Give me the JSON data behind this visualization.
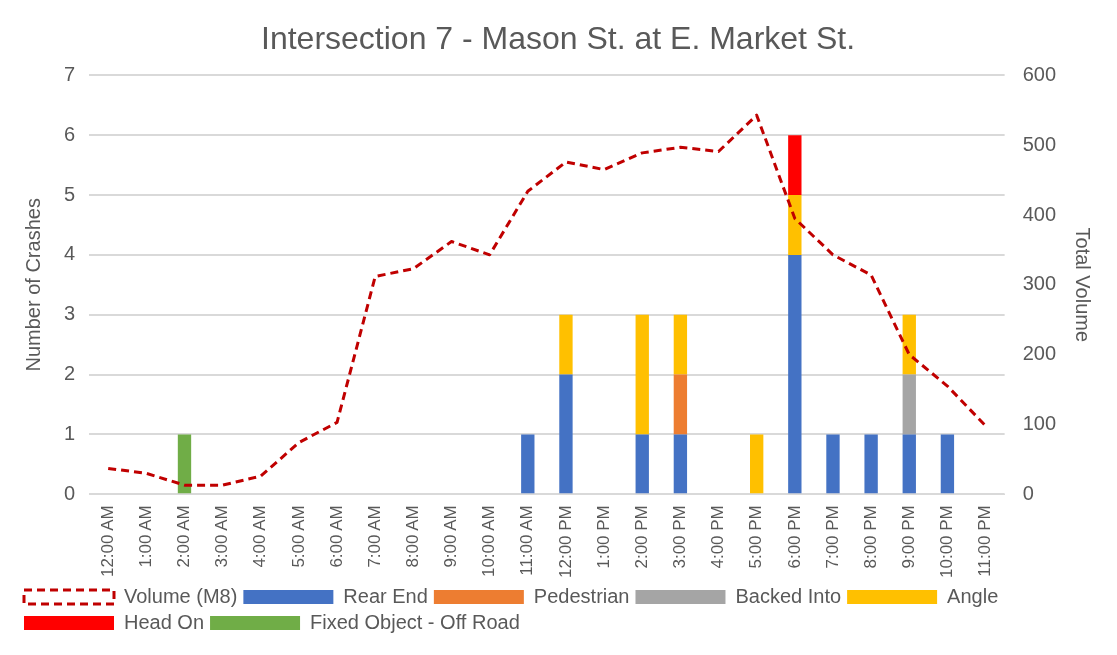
{
  "chart_data": {
    "type": "bar",
    "stacked": true,
    "title": "Intersection 7 - Mason St. at E. Market St.",
    "ylabel": "Number of Crashes",
    "y2label": "Total Volume",
    "categories": [
      "12:00 AM",
      "1:00 AM",
      "2:00 AM",
      "3:00 AM",
      "4:00 AM",
      "5:00 AM",
      "6:00 AM",
      "7:00 AM",
      "8:00 AM",
      "9:00 AM",
      "10:00 AM",
      "11:00 AM",
      "12:00 PM",
      "1:00 PM",
      "2:00 PM",
      "3:00 PM",
      "4:00 PM",
      "5:00 PM",
      "6:00 PM",
      "7:00 PM",
      "8:00 PM",
      "9:00 PM",
      "10:00 PM",
      "11:00 PM"
    ],
    "series": [
      {
        "name": "Rear End",
        "color": "#4472c4",
        "values": [
          null,
          null,
          null,
          null,
          null,
          null,
          null,
          null,
          null,
          null,
          null,
          1,
          2,
          null,
          1,
          1,
          null,
          null,
          4,
          1,
          1,
          1,
          1,
          null
        ]
      },
      {
        "name": "Pedestrian",
        "color": "#ed7d31",
        "values": [
          null,
          null,
          null,
          null,
          null,
          null,
          null,
          null,
          null,
          null,
          null,
          null,
          null,
          null,
          null,
          1,
          null,
          null,
          null,
          null,
          null,
          null,
          null,
          null
        ]
      },
      {
        "name": "Backed Into",
        "color": "#a5a5a5",
        "values": [
          null,
          null,
          null,
          null,
          null,
          null,
          null,
          null,
          null,
          null,
          null,
          null,
          null,
          null,
          null,
          null,
          null,
          null,
          null,
          null,
          null,
          1,
          null,
          null
        ]
      },
      {
        "name": "Angle",
        "color": "#ffc000",
        "values": [
          null,
          null,
          null,
          null,
          null,
          null,
          null,
          null,
          null,
          null,
          null,
          null,
          1,
          null,
          2,
          1,
          null,
          1,
          1,
          null,
          null,
          1,
          null,
          null
        ]
      },
      {
        "name": "Head On",
        "color": "#ff0000",
        "values": [
          null,
          null,
          null,
          null,
          null,
          null,
          null,
          null,
          null,
          null,
          null,
          null,
          null,
          null,
          null,
          null,
          null,
          null,
          1,
          null,
          null,
          null,
          null,
          null
        ]
      },
      {
        "name": "Fixed Object - Off Road",
        "color": "#70ad47",
        "values": [
          null,
          null,
          1,
          null,
          null,
          null,
          null,
          null,
          null,
          null,
          null,
          null,
          null,
          null,
          null,
          null,
          null,
          null,
          null,
          null,
          null,
          null,
          null,
          null
        ]
      },
      {
        "name": "Volume (M8)",
        "type": "line",
        "axis": "y2",
        "line_style": "dashed",
        "marker": "none",
        "color": "#c00000",
        "values": [
          37,
          30,
          13,
          13,
          26,
          74,
          103,
          312,
          323,
          362,
          343,
          434,
          476,
          465,
          489,
          497,
          491,
          543,
          395,
          343,
          314,
          200,
          155,
          98
        ]
      }
    ],
    "ylim": [
      0,
      7
    ],
    "yticks": [
      0,
      1,
      2,
      3,
      4,
      5,
      6,
      7
    ],
    "y2lim": [
      0,
      600
    ],
    "y2ticks": [
      0,
      100,
      200,
      300,
      400,
      500,
      600
    ],
    "grid": "y",
    "legend": "bottom"
  }
}
